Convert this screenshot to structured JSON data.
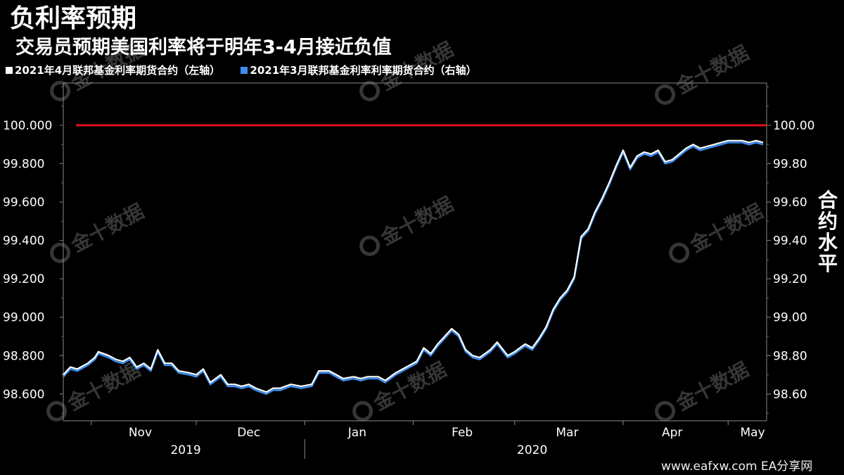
{
  "chart_data": {
    "type": "line",
    "title": "负利率预期",
    "subtitle": "交易员预期美国利率将于明年3-4月接近负值",
    "right_axis_title": "合约水平",
    "legend_position": "top-left",
    "grid": false,
    "reference_line": {
      "value": 100.0,
      "color": "#e0101c"
    },
    "left_axis": {
      "range": [
        98.46,
        100.22
      ],
      "ticks": [
        98.6,
        98.8,
        99.0,
        99.2,
        99.4,
        99.6,
        99.8,
        100.0
      ],
      "tick_labels": [
        "98.600",
        "98.800",
        "99.000",
        "99.200",
        "99.400",
        "99.600",
        "99.800",
        "100.000"
      ]
    },
    "right_axis": {
      "range": [
        98.46,
        100.22
      ],
      "ticks": [
        98.6,
        98.8,
        99.0,
        99.2,
        99.4,
        99.6,
        99.8,
        100.0
      ],
      "tick_labels": [
        "98.60",
        "98.80",
        "99.00",
        "99.20",
        "99.40",
        "99.60",
        "99.80",
        "100.00"
      ]
    },
    "x_axis": {
      "range": [
        "2019-10-24",
        "2020-05-12"
      ],
      "month_labels": [
        {
          "label": "Nov",
          "center": "2019-11-15"
        },
        {
          "label": "Dec",
          "center": "2019-12-16"
        },
        {
          "label": "Jan",
          "center": "2020-01-16"
        },
        {
          "label": "Feb",
          "center": "2020-02-15"
        },
        {
          "label": "Mar",
          "center": "2020-03-16"
        },
        {
          "label": "Apr",
          "center": "2020-04-15"
        },
        {
          "label": "May",
          "center": "2020-05-08"
        }
      ],
      "month_boundaries": [
        "2019-11-01",
        "2019-12-01",
        "2020-01-01",
        "2020-02-01",
        "2020-03-01",
        "2020-04-01",
        "2020-05-01"
      ],
      "years": [
        {
          "label": "2019",
          "center": "2019-11-28"
        },
        {
          "label": "2020",
          "center": "2020-03-06"
        }
      ],
      "year_boundary": "2020-01-01"
    },
    "series": [
      {
        "name": "2021年4月联邦基金利率期货合约（左轴）",
        "axis": "left",
        "color": "#ffffff",
        "points": [
          [
            "2019-10-24",
            98.7
          ],
          [
            "2019-10-26",
            98.74
          ],
          [
            "2019-10-28",
            98.73
          ],
          [
            "2019-10-31",
            98.76
          ],
          [
            "2019-11-02",
            98.79
          ],
          [
            "2019-11-03",
            98.82
          ],
          [
            "2019-11-06",
            98.8
          ],
          [
            "2019-11-08",
            98.78
          ],
          [
            "2019-11-10",
            98.77
          ],
          [
            "2019-11-12",
            98.79
          ],
          [
            "2019-11-14",
            98.74
          ],
          [
            "2019-11-16",
            98.76
          ],
          [
            "2019-11-18",
            98.73
          ],
          [
            "2019-11-20",
            98.83
          ],
          [
            "2019-11-22",
            98.76
          ],
          [
            "2019-11-24",
            98.76
          ],
          [
            "2019-11-26",
            98.72
          ],
          [
            "2019-11-29",
            98.71
          ],
          [
            "2019-12-01",
            98.7
          ],
          [
            "2019-12-03",
            98.73
          ],
          [
            "2019-12-05",
            98.66
          ],
          [
            "2019-12-08",
            98.7
          ],
          [
            "2019-12-10",
            98.65
          ],
          [
            "2019-12-12",
            98.65
          ],
          [
            "2019-12-14",
            98.64
          ],
          [
            "2019-12-16",
            98.65
          ],
          [
            "2019-12-18",
            98.63
          ],
          [
            "2019-12-21",
            98.61
          ],
          [
            "2019-12-23",
            98.63
          ],
          [
            "2019-12-25",
            98.63
          ],
          [
            "2019-12-28",
            98.65
          ],
          [
            "2019-12-31",
            98.64
          ],
          [
            "2020-01-03",
            98.65
          ],
          [
            "2020-01-05",
            98.72
          ],
          [
            "2020-01-08",
            98.72
          ],
          [
            "2020-01-10",
            98.7
          ],
          [
            "2020-01-12",
            98.68
          ],
          [
            "2020-01-15",
            98.69
          ],
          [
            "2020-01-17",
            98.68
          ],
          [
            "2020-01-19",
            98.69
          ],
          [
            "2020-01-22",
            98.69
          ],
          [
            "2020-01-24",
            98.67
          ],
          [
            "2020-01-27",
            98.71
          ],
          [
            "2020-01-29",
            98.73
          ],
          [
            "2020-01-31",
            98.75
          ],
          [
            "2020-02-02",
            98.77
          ],
          [
            "2020-02-04",
            98.84
          ],
          [
            "2020-02-06",
            98.81
          ],
          [
            "2020-02-08",
            98.86
          ],
          [
            "2020-02-10",
            98.9
          ],
          [
            "2020-02-12",
            98.94
          ],
          [
            "2020-02-14",
            98.91
          ],
          [
            "2020-02-16",
            98.83
          ],
          [
            "2020-02-18",
            98.8
          ],
          [
            "2020-02-20",
            98.79
          ],
          [
            "2020-02-23",
            98.83
          ],
          [
            "2020-02-25",
            98.87
          ],
          [
            "2020-02-28",
            98.8
          ],
          [
            "2020-03-01",
            98.82
          ],
          [
            "2020-03-04",
            98.86
          ],
          [
            "2020-03-06",
            98.84
          ],
          [
            "2020-03-08",
            98.89
          ],
          [
            "2020-03-10",
            98.95
          ],
          [
            "2020-03-12",
            99.04
          ],
          [
            "2020-03-14",
            99.1
          ],
          [
            "2020-03-16",
            99.14
          ],
          [
            "2020-03-18",
            99.21
          ],
          [
            "2020-03-20",
            99.42
          ],
          [
            "2020-03-22",
            99.46
          ],
          [
            "2020-03-24",
            99.55
          ],
          [
            "2020-03-26",
            99.62
          ],
          [
            "2020-03-28",
            99.7
          ],
          [
            "2020-03-30",
            99.79
          ],
          [
            "2020-04-01",
            99.87
          ],
          [
            "2020-04-03",
            99.78
          ],
          [
            "2020-04-05",
            99.84
          ],
          [
            "2020-04-07",
            99.86
          ],
          [
            "2020-04-09",
            99.85
          ],
          [
            "2020-04-11",
            99.87
          ],
          [
            "2020-04-13",
            99.81
          ],
          [
            "2020-04-15",
            99.82
          ],
          [
            "2020-04-17",
            99.85
          ],
          [
            "2020-04-19",
            99.88
          ],
          [
            "2020-04-21",
            99.9
          ],
          [
            "2020-04-23",
            99.88
          ],
          [
            "2020-04-25",
            99.89
          ],
          [
            "2020-04-27",
            99.9
          ],
          [
            "2020-04-29",
            99.91
          ],
          [
            "2020-05-01",
            99.92
          ],
          [
            "2020-05-03",
            99.92
          ],
          [
            "2020-05-05",
            99.92
          ],
          [
            "2020-05-07",
            99.91
          ],
          [
            "2020-05-09",
            99.92
          ],
          [
            "2020-05-11",
            99.91
          ]
        ]
      },
      {
        "name": "2021年3月联邦基金利率利率期货合约（右轴）",
        "axis": "right",
        "color": "#3d8ef0",
        "points": [
          [
            "2019-10-24",
            98.69
          ],
          [
            "2019-10-26",
            98.73
          ],
          [
            "2019-10-28",
            98.72
          ],
          [
            "2019-10-31",
            98.75
          ],
          [
            "2019-11-02",
            98.78
          ],
          [
            "2019-11-03",
            98.81
          ],
          [
            "2019-11-06",
            98.79
          ],
          [
            "2019-11-08",
            98.77
          ],
          [
            "2019-11-10",
            98.76
          ],
          [
            "2019-11-12",
            98.78
          ],
          [
            "2019-11-14",
            98.73
          ],
          [
            "2019-11-16",
            98.75
          ],
          [
            "2019-11-18",
            98.72
          ],
          [
            "2019-11-20",
            98.82
          ],
          [
            "2019-11-22",
            98.75
          ],
          [
            "2019-11-24",
            98.75
          ],
          [
            "2019-11-26",
            98.71
          ],
          [
            "2019-11-29",
            98.7
          ],
          [
            "2019-12-01",
            98.69
          ],
          [
            "2019-12-03",
            98.72
          ],
          [
            "2019-12-05",
            98.65
          ],
          [
            "2019-12-08",
            98.69
          ],
          [
            "2019-12-10",
            98.64
          ],
          [
            "2019-12-12",
            98.64
          ],
          [
            "2019-12-14",
            98.63
          ],
          [
            "2019-12-16",
            98.64
          ],
          [
            "2019-12-18",
            98.62
          ],
          [
            "2019-12-21",
            98.6
          ],
          [
            "2019-12-23",
            98.62
          ],
          [
            "2019-12-25",
            98.62
          ],
          [
            "2019-12-28",
            98.64
          ],
          [
            "2019-12-31",
            98.63
          ],
          [
            "2020-01-03",
            98.64
          ],
          [
            "2020-01-05",
            98.71
          ],
          [
            "2020-01-08",
            98.71
          ],
          [
            "2020-01-10",
            98.69
          ],
          [
            "2020-01-12",
            98.67
          ],
          [
            "2020-01-15",
            98.68
          ],
          [
            "2020-01-17",
            98.67
          ],
          [
            "2020-01-19",
            98.68
          ],
          [
            "2020-01-22",
            98.68
          ],
          [
            "2020-01-24",
            98.66
          ],
          [
            "2020-01-27",
            98.7
          ],
          [
            "2020-01-29",
            98.72
          ],
          [
            "2020-01-31",
            98.74
          ],
          [
            "2020-02-02",
            98.76
          ],
          [
            "2020-02-04",
            98.83
          ],
          [
            "2020-02-06",
            98.8
          ],
          [
            "2020-02-08",
            98.85
          ],
          [
            "2020-02-10",
            98.89
          ],
          [
            "2020-02-12",
            98.93
          ],
          [
            "2020-02-14",
            98.9
          ],
          [
            "2020-02-16",
            98.82
          ],
          [
            "2020-02-18",
            98.79
          ],
          [
            "2020-02-20",
            98.78
          ],
          [
            "2020-02-23",
            98.82
          ],
          [
            "2020-02-25",
            98.86
          ],
          [
            "2020-02-28",
            98.79
          ],
          [
            "2020-03-01",
            98.81
          ],
          [
            "2020-03-04",
            98.85
          ],
          [
            "2020-03-06",
            98.83
          ],
          [
            "2020-03-08",
            98.88
          ],
          [
            "2020-03-10",
            98.94
          ],
          [
            "2020-03-12",
            99.03
          ],
          [
            "2020-03-14",
            99.09
          ],
          [
            "2020-03-16",
            99.13
          ],
          [
            "2020-03-18",
            99.2
          ],
          [
            "2020-03-20",
            99.41
          ],
          [
            "2020-03-22",
            99.45
          ],
          [
            "2020-03-24",
            99.54
          ],
          [
            "2020-03-26",
            99.61
          ],
          [
            "2020-03-28",
            99.69
          ],
          [
            "2020-03-30",
            99.78
          ],
          [
            "2020-04-01",
            99.86
          ],
          [
            "2020-04-03",
            99.77
          ],
          [
            "2020-04-05",
            99.83
          ],
          [
            "2020-04-07",
            99.85
          ],
          [
            "2020-04-09",
            99.84
          ],
          [
            "2020-04-11",
            99.86
          ],
          [
            "2020-04-13",
            99.8
          ],
          [
            "2020-04-15",
            99.81
          ],
          [
            "2020-04-17",
            99.84
          ],
          [
            "2020-04-19",
            99.87
          ],
          [
            "2020-04-21",
            99.89
          ],
          [
            "2020-04-23",
            99.87
          ],
          [
            "2020-04-25",
            99.88
          ],
          [
            "2020-04-27",
            99.89
          ],
          [
            "2020-04-29",
            99.9
          ],
          [
            "2020-05-01",
            99.91
          ],
          [
            "2020-05-03",
            99.91
          ],
          [
            "2020-05-05",
            99.91
          ],
          [
            "2020-05-07",
            99.9
          ],
          [
            "2020-05-09",
            99.91
          ],
          [
            "2020-05-11",
            99.9
          ]
        ]
      }
    ]
  },
  "watermark": {
    "text": "金十数据"
  },
  "footer": {
    "text": "www.eafxw.com  EA分享网"
  }
}
